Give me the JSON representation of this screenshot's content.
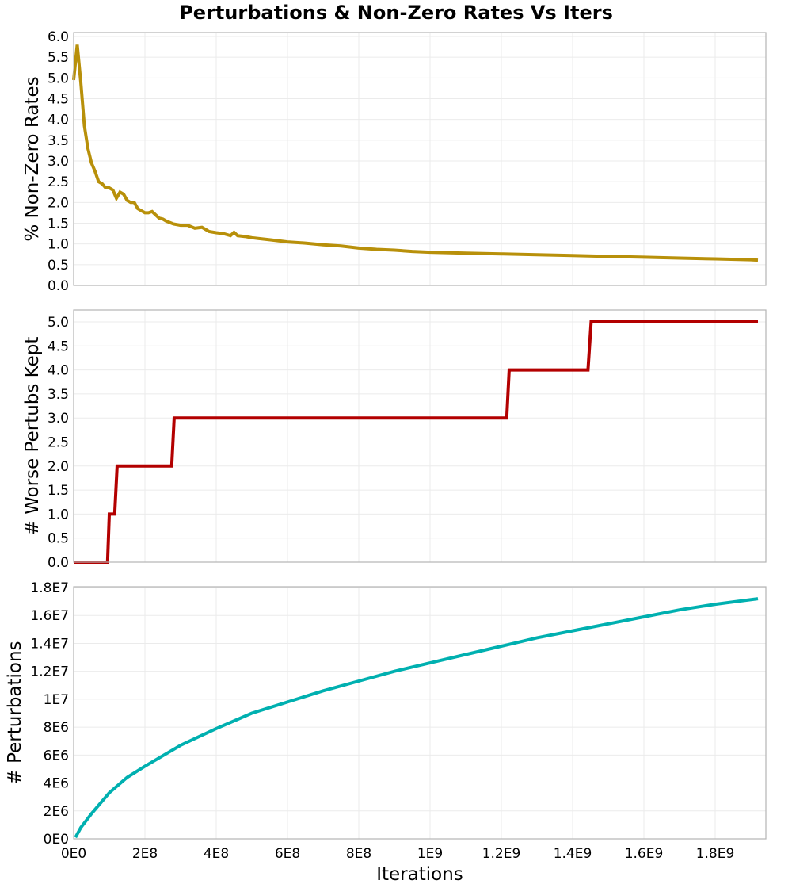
{
  "title": "Perturbations & Non-Zero Rates Vs Iters",
  "chart_data": [
    {
      "type": "line",
      "title": "Perturbations & Non-Zero Rates Vs Iters",
      "panel": "top",
      "xlabel": "Iterations",
      "ylabel": "% Non-Zero Rates",
      "color": "#b8900a",
      "xlim": [
        0,
        1920000000
      ],
      "ylim": [
        0,
        6.0
      ],
      "yticks": [
        "0.0",
        "0.5",
        "1.0",
        "1.5",
        "2.0",
        "2.5",
        "3.0",
        "3.5",
        "4.0",
        "4.5",
        "5.0",
        "5.5",
        "6.0"
      ],
      "grid": true,
      "x": [
        0,
        10000000,
        20000000,
        30000000,
        40000000,
        50000000,
        60000000,
        70000000,
        80000000,
        90000000,
        100000000,
        110000000,
        120000000,
        130000000,
        140000000,
        150000000,
        160000000,
        170000000,
        180000000,
        190000000,
        200000000,
        210000000,
        220000000,
        230000000,
        240000000,
        250000000,
        260000000,
        280000000,
        300000000,
        320000000,
        340000000,
        360000000,
        380000000,
        400000000,
        420000000,
        440000000,
        450000000,
        460000000,
        480000000,
        500000000,
        520000000,
        550000000,
        580000000,
        600000000,
        650000000,
        700000000,
        750000000,
        800000000,
        850000000,
        900000000,
        950000000,
        1000000000,
        1100000000,
        1200000000,
        1300000000,
        1400000000,
        1500000000,
        1600000000,
        1700000000,
        1800000000,
        1900000000,
        1920000000
      ],
      "values": [
        4.95,
        5.8,
        4.9,
        3.85,
        3.3,
        2.95,
        2.75,
        2.5,
        2.45,
        2.35,
        2.35,
        2.3,
        2.1,
        2.25,
        2.2,
        2.05,
        2.0,
        2.0,
        1.85,
        1.8,
        1.75,
        1.75,
        1.78,
        1.7,
        1.62,
        1.6,
        1.55,
        1.48,
        1.45,
        1.45,
        1.38,
        1.4,
        1.3,
        1.27,
        1.25,
        1.2,
        1.28,
        1.2,
        1.18,
        1.15,
        1.13,
        1.1,
        1.07,
        1.05,
        1.02,
        0.98,
        0.95,
        0.9,
        0.87,
        0.85,
        0.82,
        0.8,
        0.78,
        0.76,
        0.74,
        0.72,
        0.7,
        0.68,
        0.66,
        0.64,
        0.62,
        0.61
      ]
    },
    {
      "type": "line",
      "panel": "middle",
      "xlabel": "Iterations",
      "ylabel": "# Worse Pertubs Kept",
      "color": "#b30000",
      "step": true,
      "xlim": [
        0,
        1920000000
      ],
      "ylim": [
        0,
        5.0
      ],
      "yticks": [
        "0.0",
        "0.5",
        "1.0",
        "1.5",
        "2.0",
        "2.5",
        "3.0",
        "3.5",
        "4.0",
        "4.5",
        "5.0"
      ],
      "grid": true,
      "x": [
        0,
        95000000,
        100000000,
        115000000,
        122000000,
        275000000,
        282000000,
        1215000000,
        1222000000,
        1443000000,
        1452000000,
        1920000000
      ],
      "values": [
        0,
        0,
        1,
        1,
        2,
        2,
        3,
        3,
        4,
        4,
        5,
        5
      ]
    },
    {
      "type": "line",
      "panel": "bottom",
      "xlabel": "Iterations",
      "ylabel": "# Perturbations",
      "color": "#00b0b0",
      "xlim": [
        0,
        1920000000
      ],
      "ylim": [
        0,
        18000000
      ],
      "yticks": [
        "0E0",
        "2E6",
        "4E6",
        "6E6",
        "8E6",
        "1E7",
        "1.2E7",
        "1.4E7",
        "1.6E7",
        "1.8E7"
      ],
      "xticks": [
        "0E0",
        "2E8",
        "4E8",
        "6E8",
        "8E8",
        "1E9",
        "1.2E9",
        "1.4E9",
        "1.6E9",
        "1.8E9"
      ],
      "grid": true,
      "x": [
        5000000,
        20000000,
        50000000,
        100000000,
        150000000,
        200000000,
        300000000,
        400000000,
        500000000,
        600000000,
        700000000,
        800000000,
        900000000,
        1000000000,
        1100000000,
        1200000000,
        1300000000,
        1400000000,
        1500000000,
        1600000000,
        1700000000,
        1800000000,
        1920000000
      ],
      "values": [
        100000,
        800000,
        1800000,
        3300000,
        4400000,
        5200000,
        6700000,
        7900000,
        9000000,
        9800000,
        10600000,
        11300000,
        12000000,
        12600000,
        13200000,
        13800000,
        14400000,
        14900000,
        15400000,
        15900000,
        16400000,
        16800000,
        17200000
      ]
    }
  ]
}
